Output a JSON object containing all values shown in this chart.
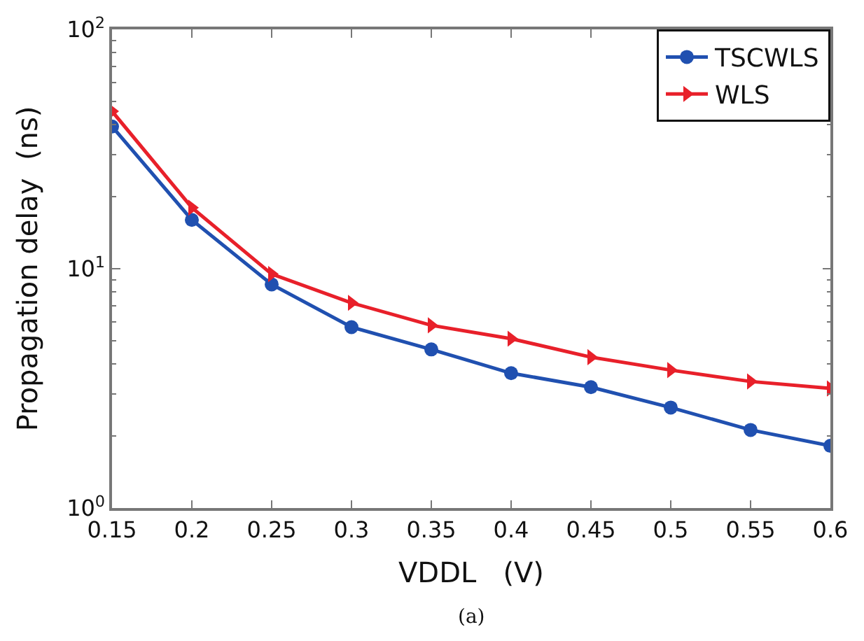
{
  "chart_data": {
    "type": "line",
    "xlabel": "VDDL   (V)",
    "ylabel": "Propagation delay  (ns)",
    "x": [
      0.15,
      0.2,
      0.25,
      0.3,
      0.35,
      0.4,
      0.45,
      0.5,
      0.55,
      0.6
    ],
    "series": [
      {
        "name": "TSCWLS",
        "color": "#2050b0",
        "marker": "circle",
        "values": [
          39.3,
          16.0,
          8.6,
          5.7,
          4.6,
          3.66,
          3.2,
          2.63,
          2.12,
          1.82
        ]
      },
      {
        "name": "WLS",
        "color": "#e8202a",
        "marker": "triangle",
        "values": [
          45.5,
          18.0,
          9.5,
          7.2,
          5.8,
          5.1,
          4.27,
          3.77,
          3.38,
          3.16
        ]
      }
    ],
    "log": "y",
    "legend": "top right",
    "line_style": "solid",
    "xlim": [
      0.15,
      0.6
    ],
    "xticks": [
      0.15,
      0.2,
      0.25,
      0.3,
      0.35,
      0.4,
      0.45,
      0.5,
      0.55,
      0.6
    ],
    "ylim": [
      1,
      100
    ],
    "yticks": [
      {
        "value": 1,
        "label": "10$^{0}$"
      },
      {
        "value": 10,
        "label": "10$^{1}$"
      },
      {
        "value": 100,
        "label": "10$^{2}$"
      }
    ],
    "annotations": [
      "(a)"
    ]
  }
}
